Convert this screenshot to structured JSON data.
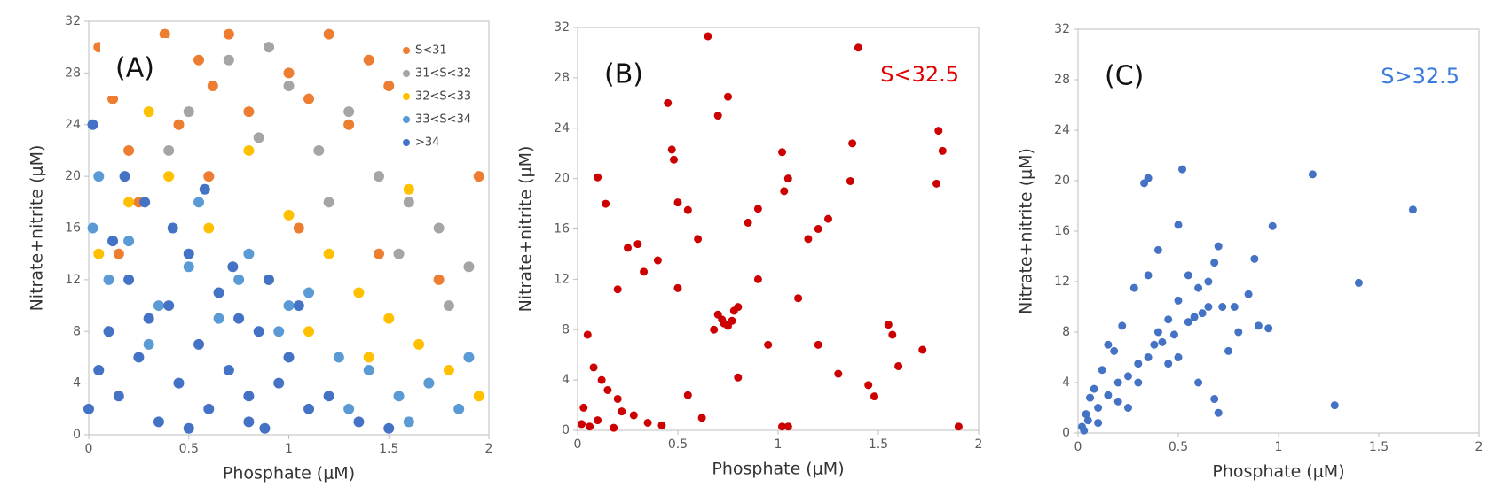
{
  "chart_data": [
    {
      "type": "scatter",
      "panel_label": "(A)",
      "xlabel": "Phosphate (μM)",
      "ylabel": "Nitrate+nitrite (μM)",
      "xlim": [
        0,
        2
      ],
      "xticks": [
        0,
        0.5,
        1,
        1.5,
        2
      ],
      "ylim": [
        0,
        32
      ],
      "yticks": [
        0,
        4,
        8,
        12,
        16,
        20,
        24,
        28,
        32
      ],
      "legend": "upper right",
      "series": [
        {
          "name": "S<31",
          "color": "#ed7d31",
          "x": [
            0.05,
            0.12,
            0.2,
            0.3,
            0.38,
            0.45,
            0.55,
            0.62,
            0.7,
            0.8,
            0.9,
            1.0,
            1.1,
            1.2,
            1.3,
            1.4,
            1.5,
            1.6,
            1.7,
            1.8,
            1.9,
            1.95,
            0.25,
            0.6,
            1.05,
            1.45,
            1.75,
            0.15
          ],
          "values": [
            30,
            26,
            22,
            28,
            31,
            24,
            29,
            27,
            31,
            25,
            30,
            28,
            26,
            31,
            24,
            29,
            27,
            22,
            30,
            25,
            28,
            20,
            18,
            20,
            16,
            14,
            12,
            14
          ]
        },
        {
          "name": "31<S<32",
          "color": "#a5a5a5",
          "x": [
            0.3,
            0.5,
            0.7,
            0.85,
            1.0,
            1.15,
            1.3,
            1.45,
            1.6,
            1.75,
            1.9,
            0.9,
            1.2,
            1.55,
            1.8,
            0.4
          ],
          "values": [
            27,
            25,
            29,
            23,
            27,
            22,
            25,
            20,
            18,
            16,
            13,
            30,
            18,
            14,
            10,
            22
          ]
        },
        {
          "name": "32<S<33",
          "color": "#ffc000",
          "x": [
            0.05,
            0.2,
            0.4,
            0.6,
            0.8,
            1.0,
            1.2,
            1.35,
            1.5,
            1.65,
            1.8,
            1.95,
            1.1,
            1.4,
            1.7,
            0.9,
            0.3,
            1.6
          ],
          "values": [
            14,
            18,
            20,
            16,
            22,
            17,
            14,
            11,
            9,
            7,
            5,
            3,
            8,
            6,
            4,
            12,
            25,
            19
          ]
        },
        {
          "name": "33<S<34",
          "color": "#5b9bd5",
          "x": [
            0.02,
            0.1,
            0.2,
            0.35,
            0.5,
            0.65,
            0.8,
            0.95,
            1.1,
            1.25,
            1.4,
            1.55,
            1.7,
            1.85,
            0.05,
            0.3,
            0.55,
            0.75,
            1.0,
            1.3,
            1.6,
            1.9
          ],
          "values": [
            16,
            12,
            15,
            10,
            13,
            9,
            14,
            8,
            11,
            6,
            5,
            3,
            4,
            2,
            20,
            7,
            18,
            12,
            10,
            2,
            1,
            6
          ]
        },
        {
          "name": ">34",
          "color": "#4472c4",
          "x": [
            0.0,
            0.05,
            0.1,
            0.15,
            0.2,
            0.25,
            0.3,
            0.35,
            0.4,
            0.45,
            0.5,
            0.55,
            0.6,
            0.65,
            0.7,
            0.75,
            0.8,
            0.85,
            0.9,
            0.95,
            1.0,
            1.05,
            1.1,
            0.12,
            0.28,
            0.42,
            0.58,
            0.72,
            0.88,
            1.2,
            1.35,
            1.5,
            0.02,
            0.18,
            0.5,
            0.8
          ],
          "values": [
            2,
            5,
            8,
            3,
            12,
            6,
            9,
            1,
            10,
            4,
            14,
            7,
            2,
            11,
            5,
            9,
            3,
            8,
            12,
            4,
            6,
            10,
            2,
            15,
            18,
            16,
            19,
            13,
            0.5,
            3,
            1,
            0.5,
            24,
            20,
            0.5,
            1
          ]
        }
      ]
    },
    {
      "type": "scatter",
      "panel_label": "(B)",
      "annotation": {
        "text": "S<32.5",
        "color": "#e00000"
      },
      "xlabel": "Phosphate (μM)",
      "ylabel": "Nitrate+nitrite (μM)",
      "xlim": [
        0,
        2
      ],
      "xticks": [
        0,
        0.5,
        1,
        1.5,
        2
      ],
      "ylim": [
        0,
        32
      ],
      "yticks": [
        0,
        4,
        8,
        12,
        16,
        20,
        24,
        28,
        32
      ],
      "series": [
        {
          "color": "#cc0000",
          "x": [
            0.65,
            1.4,
            0.45,
            0.7,
            0.75,
            1.82,
            1.79,
            1.8,
            1.02,
            1.05,
            1.03,
            0.47,
            0.48,
            1.37,
            0.1,
            0.14,
            0.5,
            0.55,
            0.9,
            0.85,
            1.2,
            1.25,
            1.15,
            1.36,
            0.3,
            0.25,
            0.4,
            0.6,
            0.7,
            0.72,
            0.75,
            0.78,
            0.8,
            0.68,
            0.73,
            0.77,
            1.55,
            1.57,
            1.6,
            1.72,
            0.05,
            0.08,
            0.12,
            0.15,
            0.2,
            0.22,
            0.02,
            0.03,
            0.06,
            0.1,
            0.18,
            0.28,
            0.35,
            0.42,
            0.55,
            0.62,
            0.8,
            0.95,
            1.02,
            1.05,
            1.2,
            1.3,
            1.45,
            1.48,
            1.9,
            0.2,
            0.33,
            0.5,
            0.9,
            1.1
          ],
          "values": [
            31.3,
            30.4,
            26,
            25,
            26.5,
            22.2,
            19.6,
            23.8,
            22.1,
            20,
            19,
            22.3,
            21.5,
            22.8,
            20.1,
            18,
            18.1,
            17.5,
            17.6,
            16.5,
            16,
            16.8,
            15.2,
            19.8,
            14.8,
            14.5,
            13.5,
            15.2,
            9.2,
            8.8,
            8.3,
            9.5,
            9.8,
            8,
            8.5,
            8.7,
            8.4,
            7.6,
            5.1,
            6.4,
            7.6,
            5,
            4,
            3.2,
            2.5,
            1.5,
            0.5,
            1.8,
            0.3,
            0.8,
            0.2,
            1.2,
            0.6,
            0.4,
            2.8,
            1,
            4.2,
            6.8,
            0.3,
            0.3,
            6.8,
            4.5,
            3.6,
            2.7,
            0.3,
            11.2,
            12.6,
            11.3,
            12,
            10.5
          ]
        }
      ]
    },
    {
      "type": "scatter",
      "panel_label": "(C)",
      "annotation": {
        "text": "S>32.5",
        "color": "#3a7be0"
      },
      "xlabel": "Phosphate (μM)",
      "ylabel": "Nitrate+nitrite (μM)",
      "xlim": [
        0,
        2
      ],
      "xticks": [
        0,
        0.5,
        1,
        1.5,
        2
      ],
      "ylim": [
        0,
        32
      ],
      "yticks": [
        0,
        4,
        8,
        12,
        16,
        20,
        24,
        28,
        32
      ],
      "series": [
        {
          "color": "#4472c4",
          "x": [
            0.33,
            0.35,
            0.52,
            1.17,
            1.67,
            0.5,
            0.97,
            1.4,
            1.28,
            0.7,
            0.68,
            0.65,
            0.6,
            0.55,
            0.5,
            0.45,
            0.4,
            0.38,
            0.35,
            0.3,
            0.25,
            0.2,
            0.15,
            0.1,
            0.05,
            0.02,
            0.8,
            0.85,
            0.9,
            0.95,
            0.72,
            0.62,
            0.58,
            0.48,
            0.42,
            0.28,
            0.22,
            0.18,
            0.12,
            0.08,
            0.04,
            0.6,
            0.7,
            0.75,
            0.5,
            0.45,
            0.3,
            0.2,
            0.1,
            0.65,
            0.55,
            0.4,
            0.35,
            0.25,
            0.15,
            0.68,
            0.78,
            0.88,
            0.03,
            0.06
          ],
          "values": [
            19.8,
            20.2,
            20.9,
            20.5,
            17.7,
            16.5,
            16.4,
            11.9,
            2.2,
            14.8,
            13.5,
            12,
            11.5,
            12.5,
            10.5,
            9,
            8,
            7,
            6,
            5.5,
            4.5,
            4,
            3,
            2,
            1,
            0.5,
            8,
            11,
            8.5,
            8.3,
            10,
            9.5,
            9.2,
            7.8,
            7.2,
            11.5,
            8.5,
            6.5,
            5,
            3.5,
            1.5,
            4,
            1.6,
            6.5,
            6,
            5.5,
            4,
            2.5,
            0.8,
            10,
            8.8,
            14.5,
            12.5,
            2,
            7,
            2.7,
            10,
            13.8,
            0.2,
            2.8
          ]
        }
      ]
    }
  ]
}
